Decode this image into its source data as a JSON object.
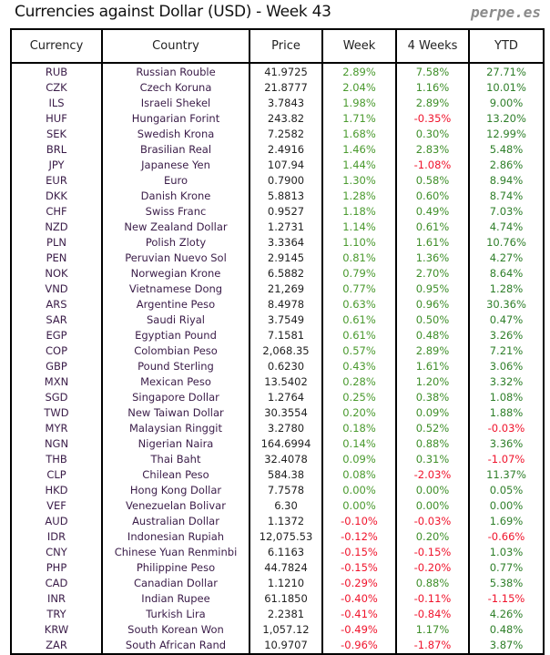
{
  "title": "Currencies against Dollar (USD) - Week 43",
  "brand": "perpe.es",
  "colors": {
    "positive": "#3f8f2a",
    "negative": "#f0142c"
  },
  "headers": {
    "currency": "Currency",
    "country": "Country",
    "price": "Price",
    "week": "Week",
    "four_weeks": "4 Weeks",
    "ytd": "YTD"
  },
  "rows": [
    [
      "RUB",
      "Russian Rouble",
      "41.9725",
      "2.89%",
      "7.58%",
      "27.71%"
    ],
    [
      "CZK",
      "Czech Koruna",
      "21.8777",
      "2.04%",
      "1.16%",
      "10.01%"
    ],
    [
      "ILS",
      "Israeli Shekel",
      "3.7843",
      "1.98%",
      "2.89%",
      "9.00%"
    ],
    [
      "HUF",
      "Hungarian Forint",
      "243.82",
      "1.71%",
      "-0.35%",
      "13.20%"
    ],
    [
      "SEK",
      "Swedish Krona",
      "7.2582",
      "1.68%",
      "0.30%",
      "12.99%"
    ],
    [
      "BRL",
      "Brasilian Real",
      "2.4916",
      "1.46%",
      "2.83%",
      "5.48%"
    ],
    [
      "JPY",
      "Japanese Yen",
      "107.94",
      "1.44%",
      "-1.08%",
      "2.86%"
    ],
    [
      "EUR",
      "Euro",
      "0.7900",
      "1.30%",
      "0.58%",
      "8.94%"
    ],
    [
      "DKK",
      "Danish Krone",
      "5.8813",
      "1.28%",
      "0.60%",
      "8.74%"
    ],
    [
      "CHF",
      "Swiss Franc",
      "0.9527",
      "1.18%",
      "0.49%",
      "7.03%"
    ],
    [
      "NZD",
      "New Zealand Dollar",
      "1.2731",
      "1.14%",
      "0.61%",
      "4.74%"
    ],
    [
      "PLN",
      "Polish Zloty",
      "3.3364",
      "1.10%",
      "1.61%",
      "10.76%"
    ],
    [
      "PEN",
      "Peruvian Nuevo Sol",
      "2.9145",
      "0.81%",
      "1.36%",
      "4.27%"
    ],
    [
      "NOK",
      "Norwegian Krone",
      "6.5882",
      "0.79%",
      "2.70%",
      "8.64%"
    ],
    [
      "VND",
      "Vietnamese Dong",
      "21,269",
      "0.77%",
      "0.95%",
      "1.28%"
    ],
    [
      "ARS",
      "Argentine Peso",
      "8.4978",
      "0.63%",
      "0.96%",
      "30.36%"
    ],
    [
      "SAR",
      "Saudi Riyal",
      "3.7549",
      "0.61%",
      "0.50%",
      "0.47%"
    ],
    [
      "EGP",
      "Egyptian Pound",
      "7.1581",
      "0.61%",
      "0.48%",
      "3.26%"
    ],
    [
      "COP",
      "Colombian Peso",
      "2,068.35",
      "0.57%",
      "2.89%",
      "7.21%"
    ],
    [
      "GBP",
      "Pound Sterling",
      "0.6230",
      "0.43%",
      "1.61%",
      "3.06%"
    ],
    [
      "MXN",
      "Mexican Peso",
      "13.5402",
      "0.28%",
      "1.20%",
      "3.32%"
    ],
    [
      "SGD",
      "Singapore Dollar",
      "1.2764",
      "0.25%",
      "0.38%",
      "1.08%"
    ],
    [
      "TWD",
      "New Taiwan Dollar",
      "30.3554",
      "0.20%",
      "0.09%",
      "1.88%"
    ],
    [
      "MYR",
      "Malaysian Ringgit",
      "3.2780",
      "0.18%",
      "0.52%",
      "-0.03%"
    ],
    [
      "NGN",
      "Nigerian Naira",
      "164.6994",
      "0.14%",
      "0.88%",
      "3.36%"
    ],
    [
      "THB",
      "Thai Baht",
      "32.4078",
      "0.09%",
      "0.31%",
      "-1.07%"
    ],
    [
      "CLP",
      "Chilean Peso",
      "584.38",
      "0.08%",
      "-2.03%",
      "11.37%"
    ],
    [
      "HKD",
      "Hong Kong Dollar",
      "7.7578",
      "0.00%",
      "0.00%",
      "0.05%"
    ],
    [
      "VEF",
      "Venezuelan Bolivar",
      "6.30",
      "0.00%",
      "0.00%",
      "0.00%"
    ],
    [
      "AUD",
      "Australian Dollar",
      "1.1372",
      "-0.10%",
      "-0.03%",
      "1.69%"
    ],
    [
      "IDR",
      "Indonesian Rupiah",
      "12,075.53",
      "-0.12%",
      "0.20%",
      "-0.66%"
    ],
    [
      "CNY",
      "Chinese Yuan Renminbi",
      "6.1163",
      "-0.15%",
      "-0.15%",
      "1.03%"
    ],
    [
      "PHP",
      "Philippine Peso",
      "44.7824",
      "-0.15%",
      "-0.20%",
      "0.77%"
    ],
    [
      "CAD",
      "Canadian Dollar",
      "1.1210",
      "-0.29%",
      "0.88%",
      "5.38%"
    ],
    [
      "INR",
      "Indian Rupee",
      "61.1850",
      "-0.40%",
      "-0.11%",
      "-1.15%"
    ],
    [
      "TRY",
      "Turkish Lira",
      "2.2381",
      "-0.41%",
      "-0.84%",
      "4.26%"
    ],
    [
      "KRW",
      "South Korean Won",
      "1,057.12",
      "-0.49%",
      "1.17%",
      "0.48%"
    ],
    [
      "ZAR",
      "South African Rand",
      "10.9707",
      "-0.96%",
      "-1.87%",
      "3.87%"
    ]
  ]
}
